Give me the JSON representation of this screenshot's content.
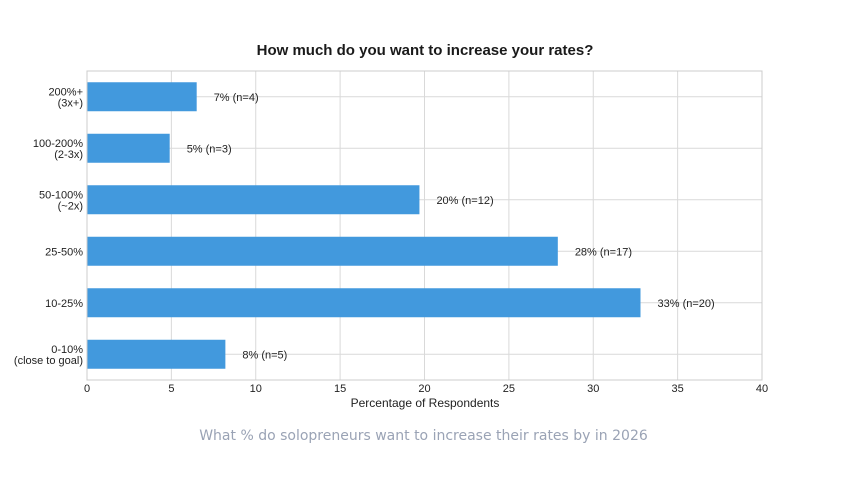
{
  "chart_data": {
    "type": "bar",
    "orientation": "horizontal",
    "title": "How much do you want to increase your rates?",
    "xlabel": "Percentage of Respondents",
    "ylabel": "",
    "xlim": [
      0,
      40
    ],
    "xticks": [
      0,
      5,
      10,
      15,
      20,
      25,
      30,
      35,
      40
    ],
    "grid": true,
    "categories": [
      [
        "200%+",
        "(3x+)"
      ],
      [
        "100-200%",
        "(2-3x)"
      ],
      [
        "50-100%",
        "(~2x)"
      ],
      [
        "25-50%"
      ],
      [
        "10-25%"
      ],
      [
        "0-10%",
        "(close to goal)"
      ]
    ],
    "values": [
      6.5,
      4.9,
      19.7,
      27.9,
      32.8,
      8.2
    ],
    "data_labels": [
      "7% (n=4)",
      "5% (n=3)",
      "20% (n=12)",
      "28% (n=17)",
      "33% (n=20)",
      "8% (n=5)"
    ],
    "bar_color": "#4299dd"
  },
  "caption": "What % do solopreneurs want to increase their rates by in 2026"
}
